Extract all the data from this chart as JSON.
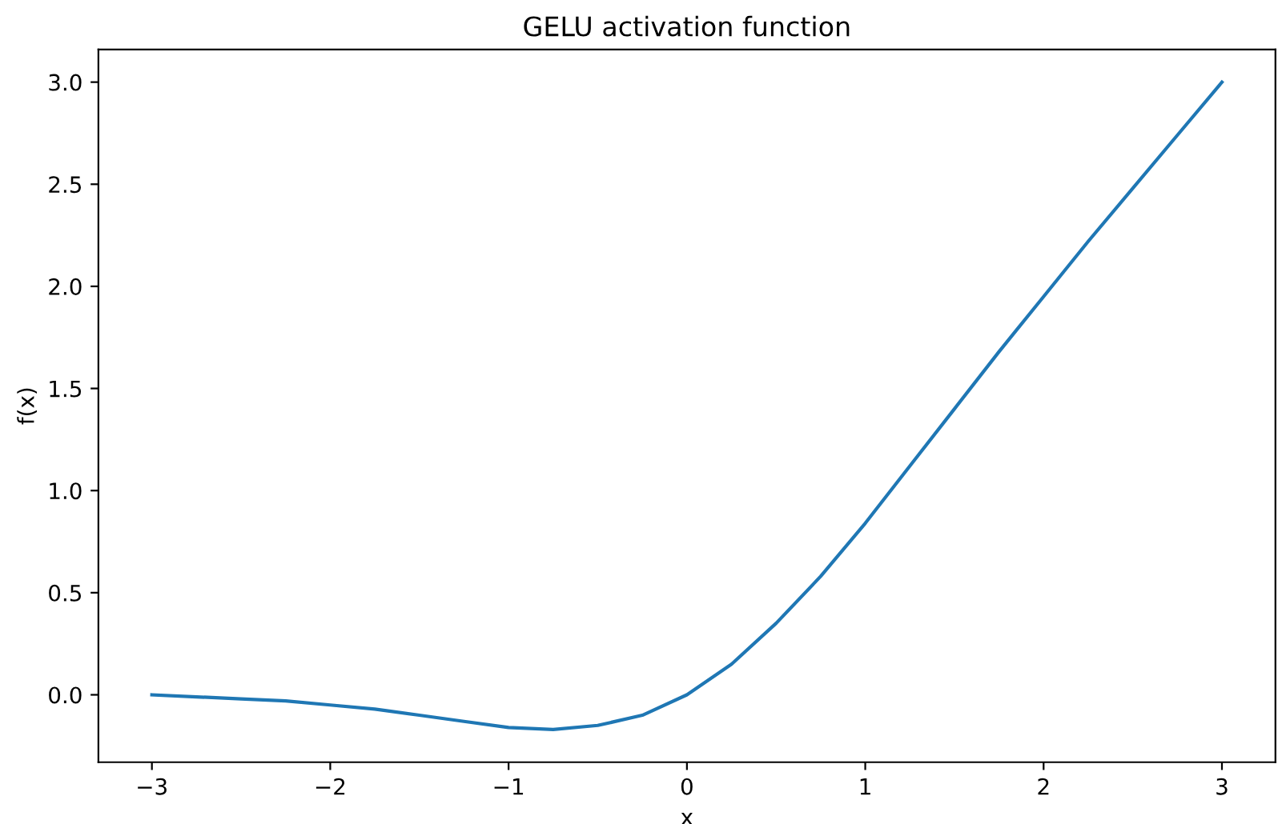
{
  "chart_data": {
    "type": "line",
    "title": "GELU activation function",
    "xlabel": "x",
    "ylabel": "f(x)",
    "x": [
      -3,
      -2.75,
      -2.5,
      -2.25,
      -2,
      -1.75,
      -1.5,
      -1.25,
      -1,
      -0.75,
      -0.5,
      -0.25,
      0,
      0.25,
      0.5,
      0.75,
      1,
      1.25,
      1.5,
      1.75,
      2,
      2.25,
      2.5,
      2.75,
      3
    ],
    "series": [
      {
        "color": "#1f77b4",
        "values": [
          -0.0,
          -0.01,
          -0.02,
          -0.03,
          -0.05,
          -0.07,
          -0.1,
          -0.13,
          -0.16,
          -0.17,
          -0.15,
          -0.1,
          0.0,
          0.15,
          0.35,
          0.58,
          0.84,
          1.12,
          1.4,
          1.68,
          1.95,
          2.22,
          2.48,
          2.74,
          3.0
        ]
      }
    ],
    "xlim": [
      -3.3,
      3.3
    ],
    "ylim": [
      -0.33,
      3.16
    ],
    "xticks": [
      {
        "value": -3,
        "label": "−3"
      },
      {
        "value": -2,
        "label": "−2"
      },
      {
        "value": -1,
        "label": "−1"
      },
      0,
      1,
      2,
      3
    ],
    "yticks": [
      {
        "value": 0,
        "label": "0.0"
      },
      {
        "value": 0.5,
        "label": "0.5"
      },
      {
        "value": 1,
        "label": "1.0"
      },
      {
        "value": 1.5,
        "label": "1.5"
      },
      {
        "value": 2,
        "label": "2.0"
      },
      {
        "value": 2.5,
        "label": "2.5"
      },
      {
        "value": 3,
        "label": "3.0"
      }
    ]
  }
}
